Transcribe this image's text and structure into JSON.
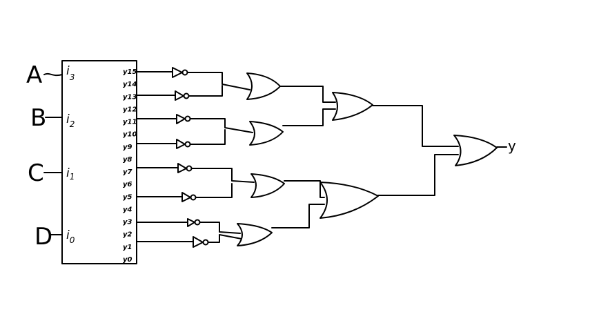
{
  "inputs": {
    "a": "A",
    "b": "B",
    "c": "C",
    "d": "D"
  },
  "decoder": {
    "input_pins": {
      "i3": "i",
      "i3_sub": "3",
      "i2": "i",
      "i2_sub": "2",
      "i1": "i",
      "i1_sub": "1",
      "i0": "i",
      "i0_sub": "0"
    },
    "output_pins": [
      "y15",
      "y14",
      "y13",
      "y12",
      "y11",
      "y10",
      "y9",
      "y8",
      "y7",
      "y6",
      "y5",
      "y4",
      "y3",
      "y2",
      "y1",
      "y0"
    ]
  },
  "output": {
    "label": "y"
  }
}
